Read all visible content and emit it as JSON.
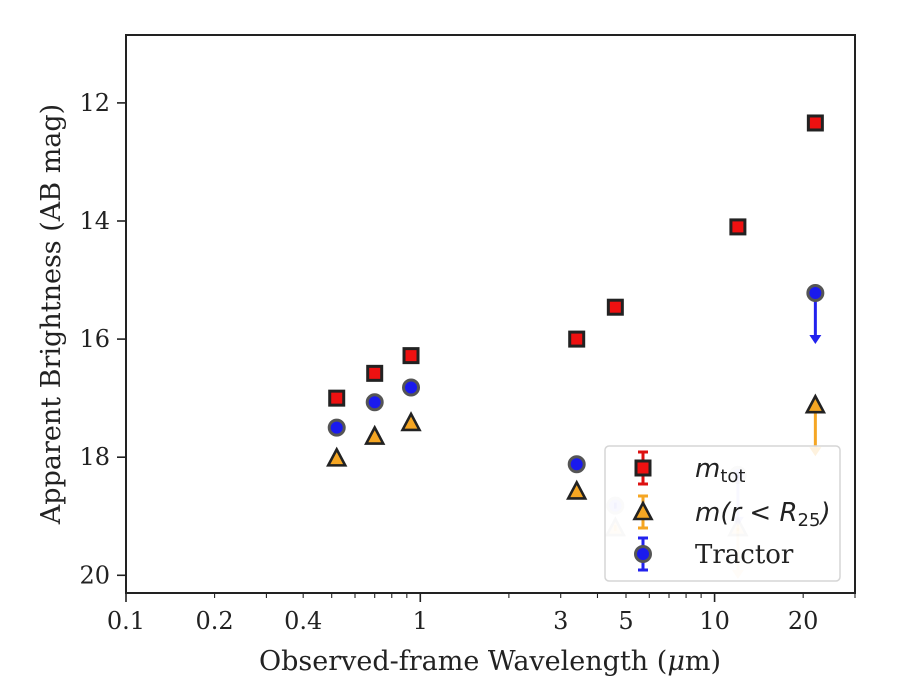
{
  "chart_data": {
    "type": "scatter",
    "xlabel": "Observed-frame Wavelength (μm)",
    "xlabel_parts": {
      "before": "Observed-frame Wavelength (",
      "mu": "μ",
      "after": "m)"
    },
    "ylabel": "Apparent Brightness (AB mag)",
    "xscale": "log",
    "xlim": [
      0.1,
      30
    ],
    "ylim": [
      20.3,
      10.85
    ],
    "y_inverted": true,
    "x_ticks": [
      0.1,
      0.2,
      0.4,
      1,
      3,
      5,
      10,
      20
    ],
    "x_tick_labels": [
      "0.1",
      "0.2",
      "0.4",
      "1",
      "3",
      "5",
      "10",
      "20"
    ],
    "y_ticks": [
      12,
      14,
      16,
      18,
      20
    ],
    "y_tick_labels": [
      "12",
      "14",
      "16",
      "18",
      "20"
    ],
    "grid": false,
    "legend_position": "lower-right",
    "series": [
      {
        "name": "m_tot",
        "legend_math": {
          "base": "m",
          "sub": "tot"
        },
        "marker": "square",
        "fill": "#ee1111",
        "edge": "#222222",
        "errcolor": "#dd1111",
        "points": [
          {
            "x": 0.52,
            "y": 17.0
          },
          {
            "x": 0.7,
            "y": 16.58
          },
          {
            "x": 0.93,
            "y": 16.28
          },
          {
            "x": 3.4,
            "y": 16.0
          },
          {
            "x": 4.6,
            "y": 15.46
          },
          {
            "x": 12.0,
            "y": 14.1
          },
          {
            "x": 22.0,
            "y": 12.34
          }
        ]
      },
      {
        "name": "m(r < R25)",
        "legend_math": {
          "base": "m(r < R",
          "sub": "25",
          "tail": ")"
        },
        "marker": "triangle",
        "fill": "#f5a623",
        "edge": "#222222",
        "errcolor": "#f5a623",
        "points": [
          {
            "x": 0.52,
            "y": 18.02
          },
          {
            "x": 0.7,
            "y": 17.65
          },
          {
            "x": 0.93,
            "y": 17.42
          },
          {
            "x": 3.4,
            "y": 18.58
          },
          {
            "x": 4.6,
            "y": 19.2,
            "faded": true
          },
          {
            "x": 12.0,
            "y": 19.2,
            "faded": true,
            "upper_limit": true
          },
          {
            "x": 22.0,
            "y": 17.12,
            "upper_limit": true
          }
        ]
      },
      {
        "name": "Tractor",
        "marker": "circle",
        "fill": "#1a1aee",
        "edge": "#555555",
        "errcolor": "#2222ee",
        "points": [
          {
            "x": 0.52,
            "y": 17.5
          },
          {
            "x": 0.7,
            "y": 17.07
          },
          {
            "x": 0.93,
            "y": 16.82
          },
          {
            "x": 3.4,
            "y": 18.12
          },
          {
            "x": 4.6,
            "y": 18.82,
            "faded": true
          },
          {
            "x": 12.0,
            "y": 18.3,
            "faded": true,
            "upper_limit": true
          },
          {
            "x": 22.0,
            "y": 15.22,
            "upper_limit": true
          }
        ]
      }
    ]
  }
}
